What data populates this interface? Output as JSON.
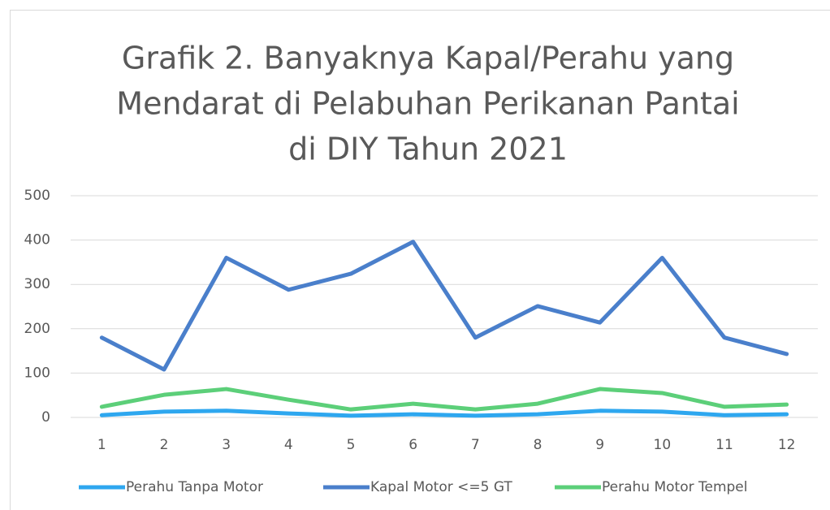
{
  "chart_data": {
    "type": "line",
    "title": [
      "Grafik 2.  Banyaknya Kapal/Perahu yang",
      "Mendarat di Pelabuhan Perikanan Pantai",
      "di DIY Tahun 2021"
    ],
    "categories": [
      "1",
      "2",
      "3",
      "4",
      "5",
      "6",
      "7",
      "8",
      "9",
      "10",
      "11",
      "12"
    ],
    "series": [
      {
        "name": "Perahu Tanpa Motor",
        "color": "#2ea7ef",
        "values": [
          5,
          13,
          15,
          9,
          4,
          7,
          4,
          7,
          15,
          13,
          5,
          7
        ]
      },
      {
        "name": "Kapal Motor <=5 GT",
        "color": "#4a7fcb",
        "values": [
          180,
          108,
          360,
          288,
          324,
          396,
          180,
          251,
          214,
          360,
          180,
          143
        ]
      },
      {
        "name": "Perahu Motor Tempel",
        "color": "#5ccf79",
        "values": [
          24,
          51,
          64,
          40,
          18,
          31,
          18,
          31,
          64,
          55,
          24,
          29
        ]
      }
    ],
    "ylim": [
      0,
      500
    ],
    "yticks": [
      0,
      100,
      200,
      300,
      400,
      500
    ],
    "grid": true,
    "legend": "bottom"
  }
}
